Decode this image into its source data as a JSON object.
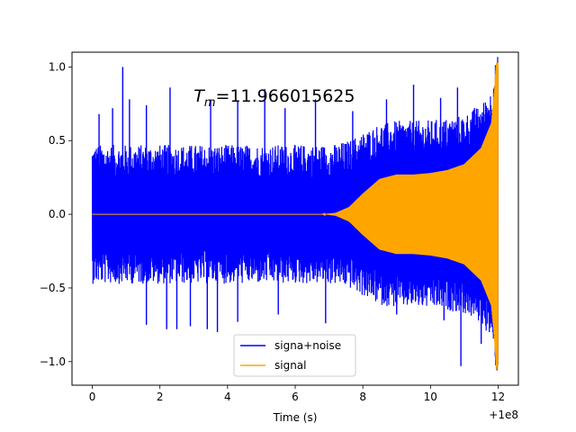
{
  "chart_data": {
    "type": "line",
    "title": "",
    "annotation": {
      "symbol": "T",
      "subscript": "m",
      "value_text": "=11.966015625",
      "x": 3.0,
      "y": 0.8
    },
    "xlabel": "Time (s)",
    "ylabel": "",
    "x_offset_label": "+1e8",
    "xlim": [
      -0.6,
      12.6
    ],
    "ylim": [
      -1.16,
      1.1
    ],
    "x_ticks": [
      0,
      2,
      4,
      6,
      8,
      10,
      12
    ],
    "y_ticks": [
      -1.0,
      -0.5,
      0.0,
      0.5,
      1.0
    ],
    "x_tick_labels": [
      "0",
      "2",
      "4",
      "6",
      "8",
      "10",
      "12"
    ],
    "y_tick_labels": [
      "−1.0",
      "−0.5",
      "0.0",
      "0.5",
      "1.0"
    ],
    "grid": false,
    "legend": {
      "position": "bottom-center"
    },
    "series": [
      {
        "name": "signa+noise",
        "color": "#0000ff",
        "x_range": [
          0,
          12
        ],
        "typical_envelope": 0.45,
        "peaks": [
          {
            "x": 0.2,
            "y": 0.68
          },
          {
            "x": 0.6,
            "y": 0.72
          },
          {
            "x": 0.9,
            "y": 1.0
          },
          {
            "x": 1.1,
            "y": 0.78
          },
          {
            "x": 1.6,
            "y": 0.74
          },
          {
            "x": 2.3,
            "y": 0.86
          },
          {
            "x": 3.5,
            "y": 0.78
          },
          {
            "x": 4.3,
            "y": 0.77
          },
          {
            "x": 5.1,
            "y": 0.85
          },
          {
            "x": 5.7,
            "y": 0.72
          },
          {
            "x": 6.6,
            "y": 0.78
          },
          {
            "x": 7.7,
            "y": 0.7
          },
          {
            "x": 8.7,
            "y": 0.78
          },
          {
            "x": 9.5,
            "y": 0.88
          },
          {
            "x": 10.3,
            "y": 0.79
          },
          {
            "x": 10.8,
            "y": 0.86
          },
          {
            "x": 11.3,
            "y": 0.72
          }
        ],
        "troughs": [
          {
            "x": 1.6,
            "y": -0.75
          },
          {
            "x": 2.2,
            "y": -0.78
          },
          {
            "x": 2.5,
            "y": -0.78
          },
          {
            "x": 2.9,
            "y": -0.76
          },
          {
            "x": 3.4,
            "y": -0.78
          },
          {
            "x": 3.7,
            "y": -0.8
          },
          {
            "x": 4.3,
            "y": -0.73
          },
          {
            "x": 5.5,
            "y": -0.68
          },
          {
            "x": 6.9,
            "y": -0.74
          },
          {
            "x": 9.0,
            "y": -0.68
          },
          {
            "x": 10.4,
            "y": -0.72
          },
          {
            "x": 10.9,
            "y": -1.03
          },
          {
            "x": 11.5,
            "y": -0.88
          }
        ]
      },
      {
        "name": "signal",
        "color": "#ffa500",
        "x_range": [
          0,
          12
        ],
        "envelope": [
          {
            "x": 0,
            "y": 0.0
          },
          {
            "x": 6.8,
            "y": 0.0
          },
          {
            "x": 7.2,
            "y": 0.01
          },
          {
            "x": 7.6,
            "y": 0.05
          },
          {
            "x": 8.0,
            "y": 0.14
          },
          {
            "x": 8.5,
            "y": 0.24
          },
          {
            "x": 9.0,
            "y": 0.27
          },
          {
            "x": 9.5,
            "y": 0.27
          },
          {
            "x": 10.0,
            "y": 0.28
          },
          {
            "x": 10.5,
            "y": 0.3
          },
          {
            "x": 11.0,
            "y": 0.34
          },
          {
            "x": 11.5,
            "y": 0.45
          },
          {
            "x": 11.8,
            "y": 0.62
          },
          {
            "x": 11.95,
            "y": 1.0
          },
          {
            "x": 12.0,
            "y": 1.0
          }
        ],
        "max": {
          "x": 11.95,
          "y": 1.0
        },
        "min": {
          "x": 11.95,
          "y": -1.05
        }
      }
    ]
  }
}
